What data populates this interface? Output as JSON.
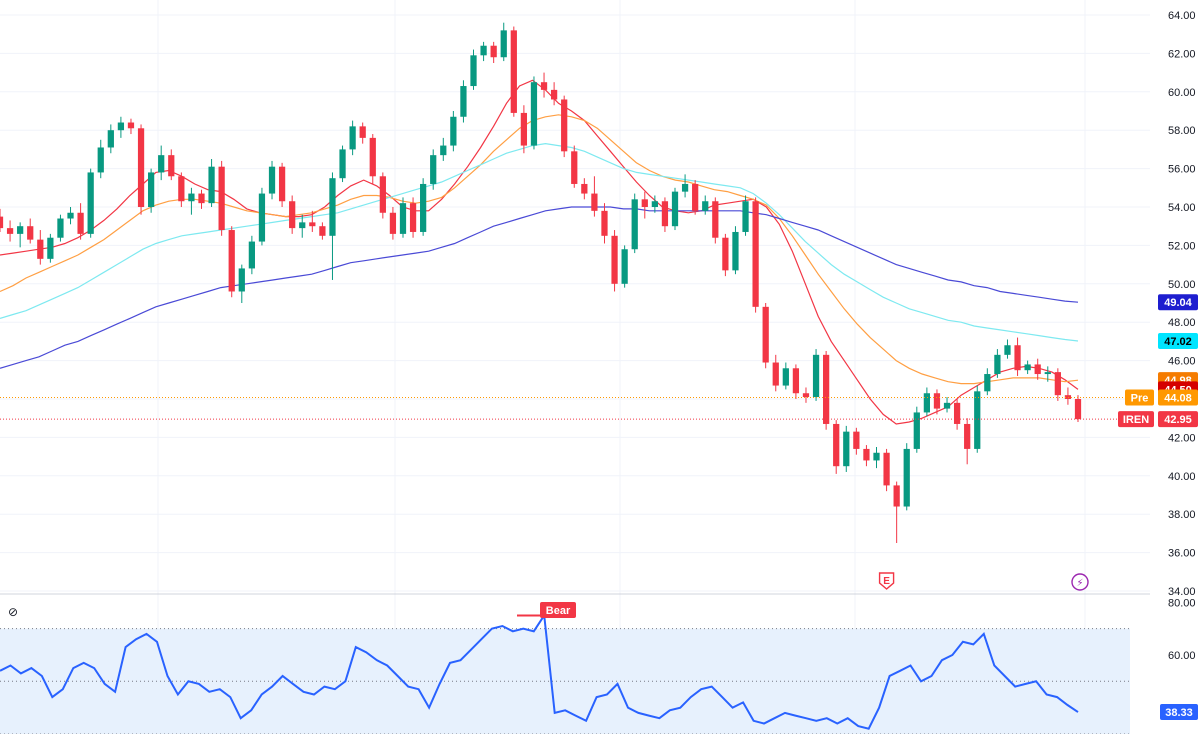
{
  "chart_data": [
    {
      "type": "candlestick",
      "ticker": "IREN",
      "y_axis": {
        "ticks": [
          "64.00",
          "62.00",
          "60.00",
          "58.00",
          "56.00",
          "54.00",
          "52.00",
          "50.00",
          "48.00",
          "46.00",
          "42.00",
          "40.00",
          "38.00",
          "36.00",
          "34.00"
        ],
        "range": [
          34,
          64.5
        ]
      },
      "grid": true,
      "price_labels": [
        {
          "text": "49.04",
          "value": 49.04,
          "color": "#1e1ecf",
          "text_color": "#ffffff"
        },
        {
          "text": "47.02",
          "value": 47.02,
          "color": "#00e5ff",
          "text_color": "#000000"
        },
        {
          "text": "44.98",
          "value": 44.98,
          "color": "#f57c00",
          "text_color": "#ffffff"
        },
        {
          "text": "44.50",
          "value": 44.5,
          "color": "#d50000",
          "text_color": "#ffffff"
        },
        {
          "text": "44.08",
          "value": 44.08,
          "color": "#ff9800",
          "text_color": "#ffffff",
          "tag": "Pre"
        },
        {
          "text": "42.95",
          "value": 42.95,
          "color": "#f23645",
          "text_color": "#ffffff",
          "tag": "IREN"
        }
      ],
      "reference_lines": [
        {
          "value": 44.08,
          "color": "#ff9800",
          "style": "dotted"
        },
        {
          "value": 42.95,
          "color": "#f23645",
          "style": "dotted"
        }
      ],
      "moving_averages": [
        {
          "color": "#f23645",
          "values": [
            51.5,
            51.6,
            51.7,
            51.8,
            51.9,
            52.1,
            52.4,
            52.8,
            53.3,
            53.9,
            54.6,
            55.2,
            55.8,
            55.9,
            55.6,
            55.2,
            54.9,
            54.8,
            54.4,
            53.9,
            53.7,
            53.6,
            53.5,
            53.5,
            53.6,
            54.0,
            54.6,
            55.1,
            55.4,
            55.1,
            54.6,
            54.0,
            53.8,
            53.8,
            54.4,
            55.2,
            56.1,
            57.1,
            58.2,
            59.4,
            60.3,
            60.6,
            60.1,
            59.4,
            59.0,
            58.5,
            57.7,
            56.9,
            56.1,
            55.3,
            54.6,
            54.0,
            53.8,
            53.7,
            53.8,
            54.1,
            54.2,
            54.3,
            54.4,
            54.0,
            53.1,
            51.7,
            50.0,
            48.3,
            47.0,
            46.0,
            45.0,
            44.0,
            43.2,
            42.7,
            42.8,
            43.0,
            43.3,
            43.6,
            44.2,
            44.6,
            45.0,
            45.4,
            45.6,
            45.7,
            45.6,
            45.4,
            45.0,
            44.5
          ]
        },
        {
          "color": "#ff9f43",
          "values": [
            49.6,
            49.9,
            50.3,
            50.6,
            50.9,
            51.2,
            51.5,
            51.9,
            52.3,
            52.8,
            53.3,
            53.8,
            54.1,
            54.3,
            54.4,
            54.4,
            54.3,
            54.2,
            54.0,
            53.8,
            53.7,
            53.6,
            53.5,
            53.6,
            53.7,
            53.9,
            54.1,
            54.4,
            54.6,
            54.6,
            54.5,
            54.3,
            54.2,
            54.3,
            54.5,
            55.0,
            55.6,
            56.2,
            56.9,
            57.5,
            58.1,
            58.5,
            58.7,
            58.8,
            58.7,
            58.5,
            58.1,
            57.5,
            56.9,
            56.3,
            55.9,
            55.6,
            55.4,
            55.3,
            55.1,
            54.9,
            54.8,
            54.6,
            54.4,
            54.1,
            53.4,
            52.5,
            51.5,
            50.5,
            49.6,
            48.7,
            47.9,
            47.2,
            46.6,
            46.0,
            45.6,
            45.3,
            45.1,
            44.9,
            44.8,
            44.8,
            44.9,
            45.0,
            45.1,
            45.1,
            45.1,
            45.0,
            44.9,
            44.98
          ]
        },
        {
          "color": "#7ee9f0",
          "values": [
            48.2,
            48.4,
            48.6,
            48.9,
            49.2,
            49.5,
            49.8,
            50.2,
            50.6,
            51.0,
            51.4,
            51.8,
            52.1,
            52.3,
            52.5,
            52.6,
            52.7,
            52.8,
            52.9,
            53.0,
            53.1,
            53.2,
            53.3,
            53.4,
            53.5,
            53.6,
            53.7,
            53.9,
            54.1,
            54.3,
            54.5,
            54.7,
            54.9,
            55.1,
            55.3,
            55.6,
            55.9,
            56.2,
            56.5,
            56.8,
            57.0,
            57.2,
            57.3,
            57.2,
            57.1,
            56.9,
            56.6,
            56.3,
            56.0,
            55.8,
            55.7,
            55.6,
            55.5,
            55.4,
            55.3,
            55.2,
            55.1,
            55.0,
            54.7,
            54.2,
            53.6,
            52.9,
            52.2,
            51.6,
            51.0,
            50.5,
            50.1,
            49.7,
            49.3,
            49.0,
            48.7,
            48.5,
            48.3,
            48.1,
            48.0,
            47.8,
            47.7,
            47.6,
            47.5,
            47.4,
            47.3,
            47.2,
            47.1,
            47.02
          ]
        },
        {
          "color": "#4a4ad6",
          "values": [
            45.6,
            45.8,
            46.0,
            46.2,
            46.5,
            46.8,
            47.0,
            47.3,
            47.6,
            47.9,
            48.2,
            48.5,
            48.8,
            49.0,
            49.2,
            49.4,
            49.6,
            49.8,
            49.9,
            50.0,
            50.1,
            50.2,
            50.3,
            50.4,
            50.5,
            50.7,
            50.9,
            51.1,
            51.2,
            51.3,
            51.4,
            51.5,
            51.6,
            51.7,
            51.9,
            52.1,
            52.4,
            52.7,
            53.0,
            53.2,
            53.4,
            53.6,
            53.8,
            53.9,
            54.0,
            54.0,
            54.0,
            54.0,
            53.9,
            53.9,
            53.8,
            53.8,
            53.8,
            53.8,
            53.8,
            53.8,
            53.8,
            53.8,
            53.7,
            53.6,
            53.4,
            53.2,
            53.0,
            52.8,
            52.5,
            52.2,
            51.9,
            51.6,
            51.3,
            51.0,
            50.8,
            50.6,
            50.4,
            50.2,
            50.1,
            49.9,
            49.8,
            49.6,
            49.5,
            49.4,
            49.3,
            49.2,
            49.1,
            49.04
          ]
        }
      ],
      "ohlc": [
        [
          53.5,
          53.9,
          52.7,
          52.9
        ],
        [
          52.9,
          53.3,
          52.2,
          52.6
        ],
        [
          52.6,
          53.2,
          51.9,
          53.0
        ],
        [
          53.0,
          53.4,
          52.1,
          52.3
        ],
        [
          52.3,
          52.8,
          51.0,
          51.3
        ],
        [
          51.3,
          52.6,
          51.1,
          52.4
        ],
        [
          52.4,
          53.6,
          52.2,
          53.4
        ],
        [
          53.4,
          54.0,
          53.1,
          53.7
        ],
        [
          53.7,
          54.2,
          52.3,
          52.6
        ],
        [
          52.6,
          56.0,
          52.4,
          55.8
        ],
        [
          55.8,
          57.5,
          55.5,
          57.1
        ],
        [
          57.1,
          58.3,
          56.8,
          58.0
        ],
        [
          58.0,
          58.7,
          57.6,
          58.4
        ],
        [
          58.4,
          58.6,
          57.8,
          58.1
        ],
        [
          58.1,
          58.3,
          53.6,
          54.0
        ],
        [
          54.0,
          56.0,
          53.7,
          55.8
        ],
        [
          55.8,
          57.2,
          55.4,
          56.7
        ],
        [
          56.7,
          57.0,
          55.4,
          55.6
        ],
        [
          55.6,
          55.8,
          54.0,
          54.3
        ],
        [
          54.3,
          55.0,
          53.6,
          54.7
        ],
        [
          54.7,
          54.9,
          53.9,
          54.2
        ],
        [
          54.2,
          56.5,
          54.0,
          56.1
        ],
        [
          56.1,
          56.4,
          52.5,
          52.8
        ],
        [
          52.8,
          53.0,
          49.3,
          49.6
        ],
        [
          49.6,
          51.0,
          49.0,
          50.8
        ],
        [
          50.8,
          52.5,
          50.5,
          52.2
        ],
        [
          52.2,
          55.0,
          52.0,
          54.7
        ],
        [
          54.7,
          56.4,
          54.4,
          56.1
        ],
        [
          56.1,
          56.3,
          54.0,
          54.3
        ],
        [
          54.3,
          54.6,
          52.6,
          52.9
        ],
        [
          52.9,
          53.6,
          52.4,
          53.2
        ],
        [
          53.2,
          53.8,
          52.7,
          53.0
        ],
        [
          53.0,
          53.2,
          52.3,
          52.5
        ],
        [
          52.5,
          55.8,
          50.2,
          55.5
        ],
        [
          55.5,
          57.2,
          55.3,
          57.0
        ],
        [
          57.0,
          58.5,
          56.7,
          58.2
        ],
        [
          58.2,
          58.4,
          57.3,
          57.6
        ],
        [
          57.6,
          57.8,
          55.2,
          55.6
        ],
        [
          55.6,
          55.8,
          53.4,
          53.7
        ],
        [
          53.7,
          54.0,
          52.3,
          52.6
        ],
        [
          52.6,
          54.5,
          52.4,
          54.2
        ],
        [
          54.2,
          54.5,
          52.4,
          52.7
        ],
        [
          52.7,
          55.5,
          52.5,
          55.2
        ],
        [
          55.2,
          57.0,
          54.9,
          56.7
        ],
        [
          56.7,
          57.6,
          56.4,
          57.2
        ],
        [
          57.2,
          59.0,
          56.9,
          58.7
        ],
        [
          58.7,
          60.6,
          58.4,
          60.3
        ],
        [
          60.3,
          62.2,
          60.1,
          61.9
        ],
        [
          61.9,
          62.6,
          61.6,
          62.4
        ],
        [
          62.4,
          62.6,
          61.5,
          61.8
        ],
        [
          61.8,
          63.6,
          61.6,
          63.2
        ],
        [
          63.2,
          63.4,
          58.7,
          58.9
        ],
        [
          58.9,
          59.3,
          56.8,
          57.2
        ],
        [
          57.2,
          60.8,
          57.0,
          60.5
        ],
        [
          60.5,
          61.0,
          59.7,
          60.1
        ],
        [
          60.1,
          60.5,
          59.3,
          59.6
        ],
        [
          59.6,
          59.8,
          56.6,
          56.9
        ],
        [
          56.9,
          57.2,
          55.0,
          55.2
        ],
        [
          55.2,
          55.5,
          54.4,
          54.7
        ],
        [
          54.7,
          55.6,
          53.5,
          53.8
        ],
        [
          53.8,
          54.2,
          52.1,
          52.5
        ],
        [
          52.5,
          52.8,
          49.6,
          50.0
        ],
        [
          50.0,
          52.0,
          49.8,
          51.8
        ],
        [
          51.8,
          54.7,
          51.6,
          54.4
        ],
        [
          54.4,
          54.8,
          53.4,
          54.0
        ],
        [
          54.0,
          54.6,
          53.7,
          54.3
        ],
        [
          54.3,
          54.5,
          52.7,
          53.0
        ],
        [
          53.0,
          55.0,
          52.8,
          54.8
        ],
        [
          54.8,
          55.7,
          54.5,
          55.2
        ],
        [
          55.2,
          55.4,
          53.6,
          53.8
        ],
        [
          53.8,
          54.6,
          53.6,
          54.3
        ],
        [
          54.3,
          54.5,
          52.1,
          52.4
        ],
        [
          52.4,
          52.6,
          50.4,
          50.7
        ],
        [
          50.7,
          53.0,
          50.5,
          52.7
        ],
        [
          52.7,
          54.6,
          52.5,
          54.3
        ],
        [
          54.3,
          54.5,
          48.5,
          48.8
        ],
        [
          48.8,
          49.0,
          45.6,
          45.9
        ],
        [
          45.9,
          46.3,
          44.4,
          44.7
        ],
        [
          44.7,
          45.9,
          44.5,
          45.6
        ],
        [
          45.6,
          45.8,
          44.0,
          44.3
        ],
        [
          44.3,
          44.6,
          43.8,
          44.1
        ],
        [
          44.1,
          46.6,
          43.9,
          46.3
        ],
        [
          46.3,
          46.5,
          42.4,
          42.7
        ],
        [
          42.7,
          42.9,
          40.1,
          40.5
        ],
        [
          40.5,
          42.6,
          40.2,
          42.3
        ],
        [
          42.3,
          42.5,
          41.1,
          41.4
        ],
        [
          41.4,
          41.6,
          40.5,
          40.8
        ],
        [
          40.8,
          41.5,
          40.4,
          41.2
        ],
        [
          41.2,
          41.4,
          39.2,
          39.5
        ],
        [
          39.5,
          39.7,
          36.5,
          38.4
        ],
        [
          38.4,
          41.7,
          38.2,
          41.4
        ],
        [
          41.4,
          43.6,
          41.2,
          43.3
        ],
        [
          43.3,
          44.6,
          43.1,
          44.3
        ],
        [
          44.3,
          44.5,
          43.2,
          43.5
        ],
        [
          43.5,
          44.1,
          43.3,
          43.8
        ],
        [
          43.8,
          44.0,
          42.4,
          42.7
        ],
        [
          42.7,
          43.0,
          40.6,
          41.4
        ],
        [
          41.4,
          44.7,
          41.2,
          44.4
        ],
        [
          44.4,
          45.6,
          44.2,
          45.3
        ],
        [
          45.3,
          46.6,
          45.1,
          46.3
        ],
        [
          46.3,
          47.1,
          46.1,
          46.8
        ],
        [
          46.8,
          47.2,
          45.2,
          45.5
        ],
        [
          45.5,
          46.0,
          45.3,
          45.8
        ],
        [
          45.8,
          46.1,
          45.0,
          45.3
        ],
        [
          45.3,
          45.7,
          44.9,
          45.4
        ],
        [
          45.4,
          45.6,
          43.9,
          44.2
        ],
        [
          44.2,
          44.6,
          43.7,
          44.0
        ],
        [
          44.0,
          44.2,
          42.8,
          42.95
        ]
      ],
      "events": [
        {
          "label": "E",
          "bar_index": 88,
          "color": "#f23645"
        },
        {
          "label": "⚡",
          "color": "#9c27b0"
        }
      ]
    },
    {
      "type": "line",
      "indicator_symbol": "⊘",
      "y_axis": {
        "ticks": [
          "80.00",
          "60.00"
        ],
        "range": [
          30,
          82
        ]
      },
      "band": {
        "upper": 70,
        "middle": 50,
        "lower": 30,
        "fill": "#e7f1fd"
      },
      "series": [
        {
          "color": "#2962ff",
          "values": [
            54,
            56,
            53,
            55,
            52,
            44,
            47,
            55,
            57,
            55,
            49,
            46,
            63,
            66,
            68,
            65,
            52,
            45,
            50,
            49,
            46,
            47,
            44,
            36,
            39,
            45,
            48,
            52,
            49,
            46,
            45,
            48,
            47,
            50,
            63,
            61,
            58,
            56,
            52,
            48,
            47,
            40,
            49,
            57,
            58,
            62,
            66,
            70,
            71,
            69,
            70,
            69,
            75,
            38,
            39,
            37,
            35,
            44,
            45,
            49,
            40,
            38,
            37,
            36,
            39,
            40,
            44,
            47,
            48,
            44,
            40,
            42,
            35,
            34,
            36,
            38,
            37,
            36,
            35,
            36,
            34,
            36,
            33,
            32,
            40,
            52,
            54,
            56,
            50,
            52,
            58,
            60,
            65,
            64,
            68,
            56,
            52,
            48,
            49,
            50,
            45,
            44,
            41,
            38.33
          ]
        }
      ],
      "last_value_label": "38.33",
      "annotation": {
        "text": "Bear",
        "color": "#f23645"
      }
    }
  ]
}
